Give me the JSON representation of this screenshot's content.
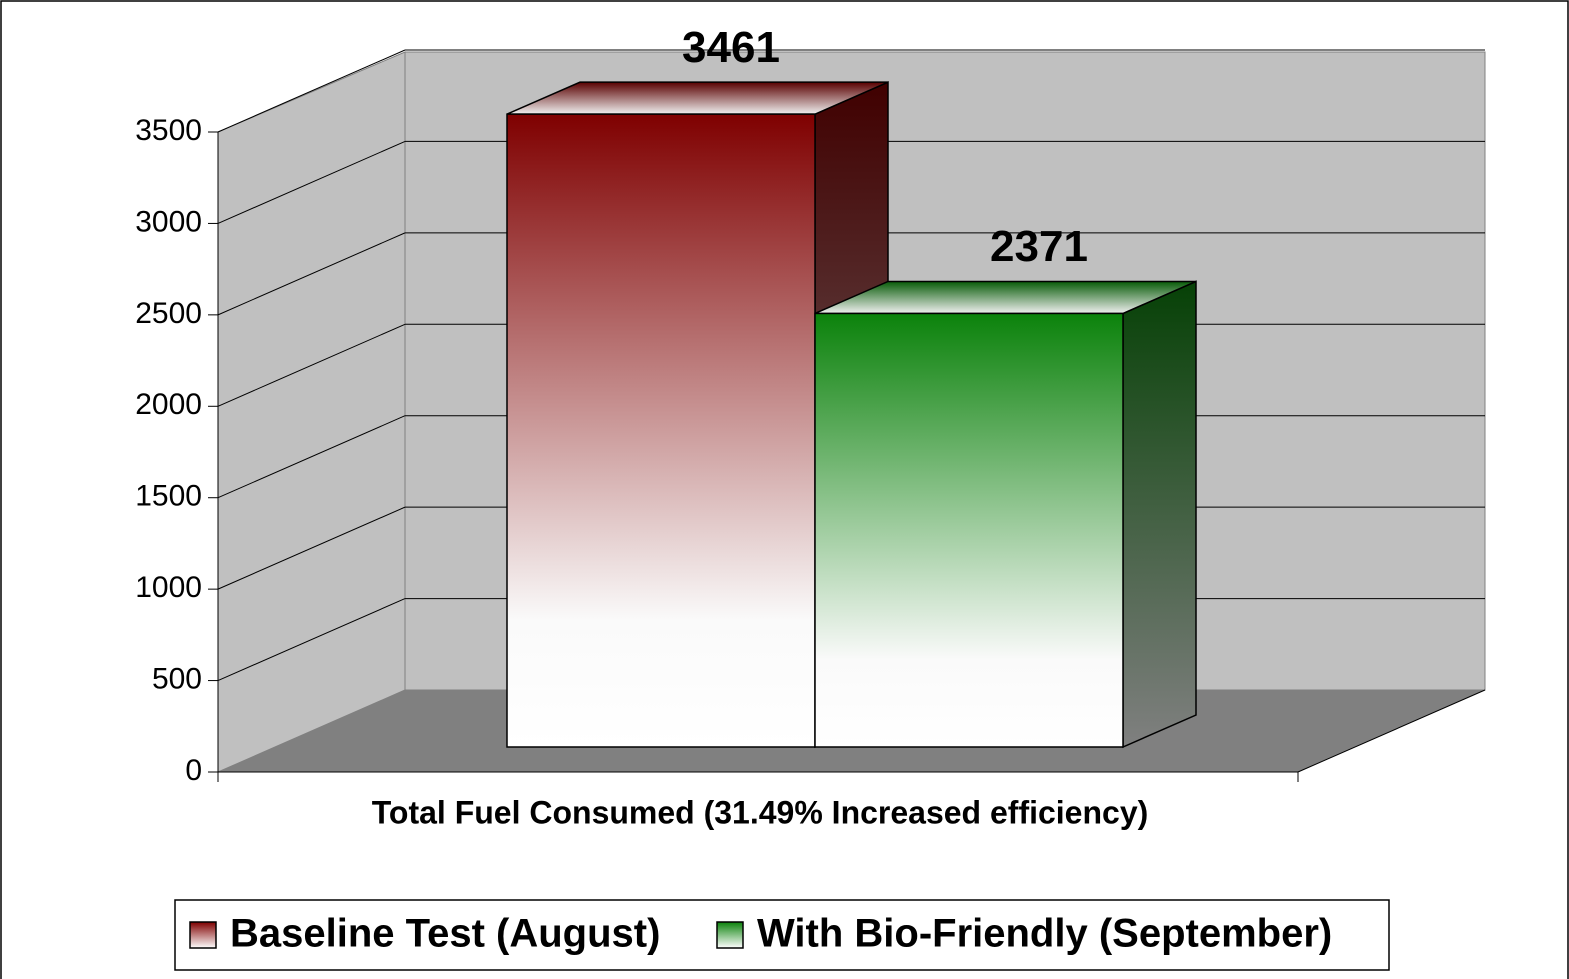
{
  "chart_data": {
    "type": "bar3d",
    "categories": [
      "Total Fuel Consumed (31.49% Increased efficiency)"
    ],
    "series": [
      {
        "name": "Baseline Test (August)",
        "color": "#7f0000",
        "values": [
          3461
        ]
      },
      {
        "name": "With Bio-Friendly (September)",
        "color": "#0b820b",
        "values": [
          2371
        ]
      }
    ],
    "ylim": [
      0,
      3500
    ],
    "yticks": [
      0,
      500,
      1000,
      1500,
      2000,
      2500,
      3000,
      3500
    ],
    "grid": true,
    "legend": "bottom"
  }
}
